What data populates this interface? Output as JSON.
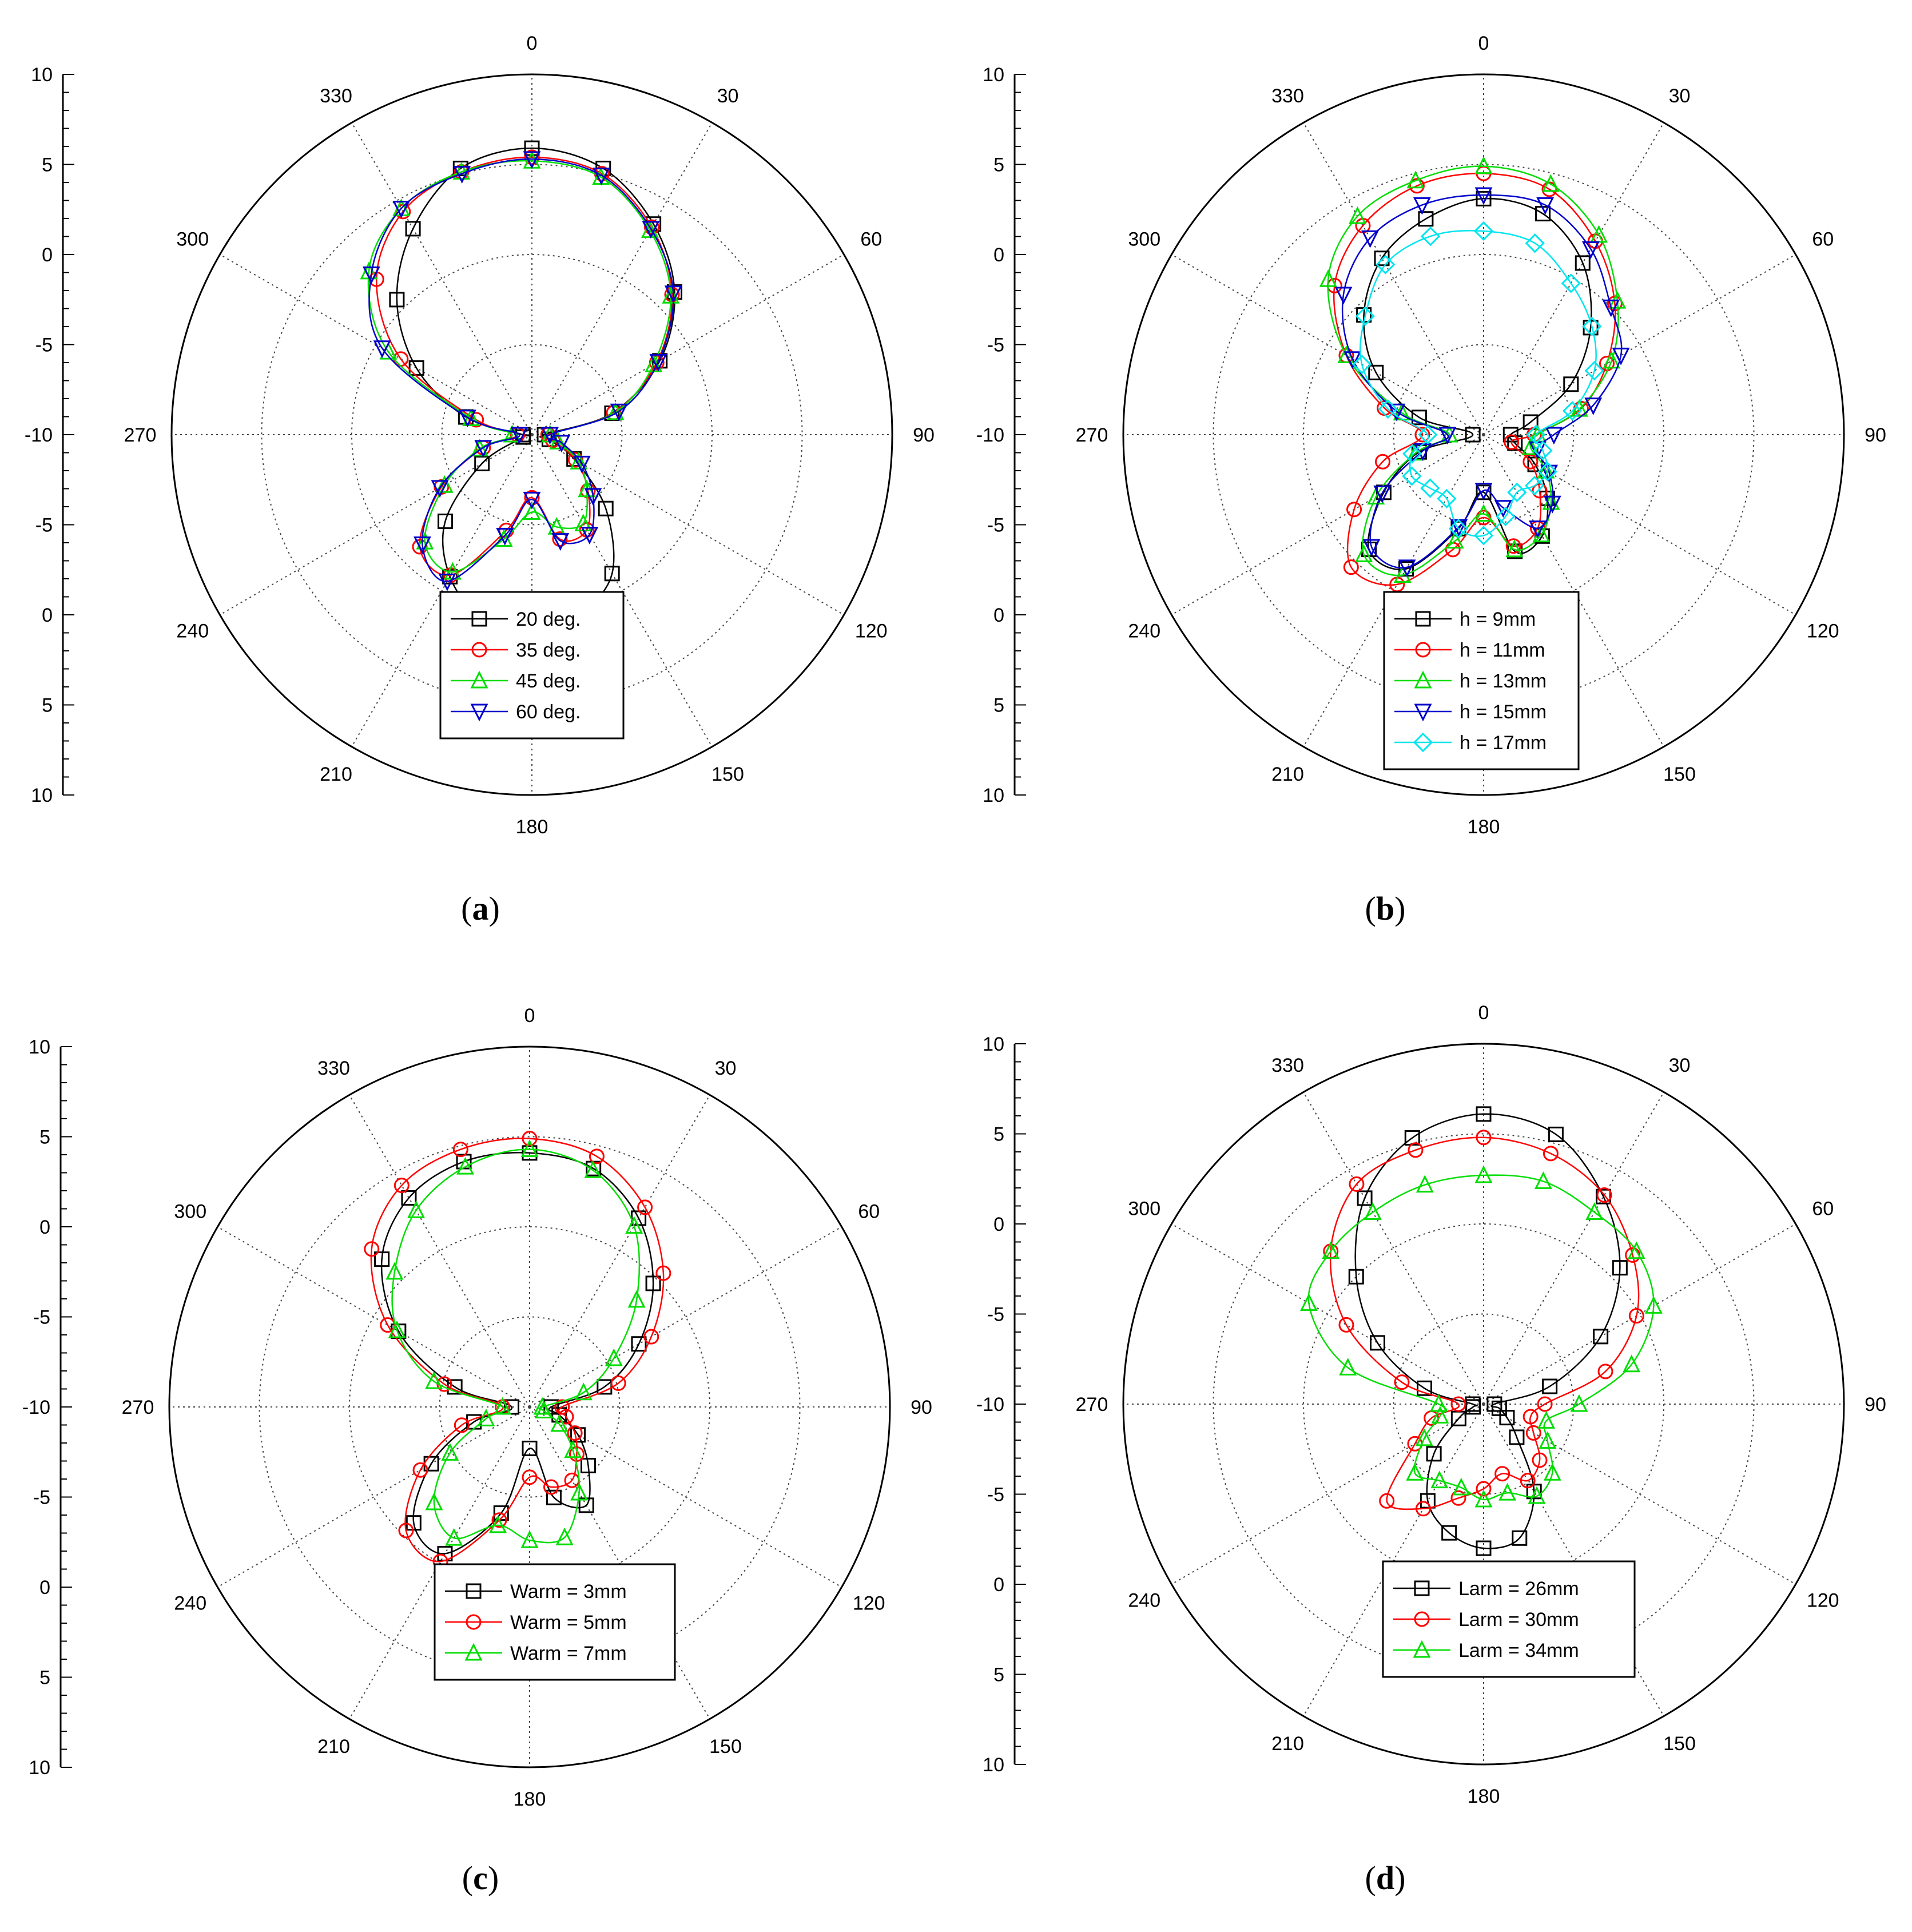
{
  "radial_scale_ticks": [
    "10",
    "5",
    "0",
    "-5",
    "-10",
    "-5",
    "0",
    "5",
    "10"
  ],
  "angle_ticks": [
    0,
    30,
    60,
    90,
    120,
    150,
    180,
    210,
    240,
    270,
    300,
    330
  ],
  "panels": [
    {
      "open": "(",
      "letter": "a",
      "close": ")"
    },
    {
      "open": "(",
      "letter": "b",
      "close": ")"
    },
    {
      "open": "(",
      "letter": "c",
      "close": ")"
    },
    {
      "open": "(",
      "letter": "d",
      "close": ")"
    }
  ],
  "chart_data": [
    {
      "type": "polar-line",
      "panel": "a",
      "radial_range": [
        -10,
        10
      ],
      "radial_ticks": [
        -10,
        -5,
        0,
        5,
        10
      ],
      "angle_ticks_deg": [
        0,
        30,
        60,
        90,
        120,
        150,
        180,
        210,
        240,
        270,
        300,
        330
      ],
      "legend_position": "bottom-center",
      "grid": true,
      "series": [
        {
          "name": "20 deg.",
          "color": "#000000",
          "marker": "square",
          "theta": [
            0,
            15,
            30,
            45,
            60,
            75,
            90,
            105,
            120,
            135,
            150,
            165,
            180,
            195,
            210,
            225,
            240,
            255,
            270,
            285,
            300,
            315,
            330,
            345
          ],
          "r": [
            5.9,
            5.3,
            3.5,
            1.2,
            -1.8,
            -5.4,
            -9.3,
            -9.0,
            -7.3,
            -4.2,
            -1.1,
            0.3,
            0.9,
            0.6,
            -0.9,
            -3.2,
            -6.8,
            -9.5,
            -9.5,
            -6.2,
            -2.6,
            0.6,
            3.2,
            5.3
          ]
        },
        {
          "name": "35 deg.",
          "color": "#ff0000",
          "marker": "circle",
          "theta": [
            0,
            15,
            30,
            45,
            60,
            75,
            90,
            105,
            120,
            135,
            150,
            165,
            180,
            195,
            210,
            225,
            240,
            255,
            270,
            285,
            300,
            315,
            330,
            345
          ],
          "r": [
            5.4,
            5.0,
            3.3,
            1.0,
            -2.0,
            -5.3,
            -9.1,
            -8.8,
            -7.2,
            -5.6,
            -3.9,
            -4.0,
            -6.5,
            -4.5,
            -1.0,
            -1.2,
            -4.2,
            -7.2,
            -9.2,
            -6.8,
            -1.6,
            2.2,
            4.3,
            5.1
          ]
        },
        {
          "name": "45 deg.",
          "color": "#00dd00",
          "marker": "triangle-up",
          "theta": [
            0,
            15,
            30,
            45,
            60,
            75,
            90,
            105,
            120,
            135,
            150,
            165,
            180,
            195,
            210,
            225,
            240,
            255,
            270,
            285,
            300,
            315,
            330,
            345
          ],
          "r": [
            5.2,
            4.8,
            3.1,
            0.9,
            -2.2,
            -5.2,
            -9.0,
            -8.5,
            -7.0,
            -5.7,
            -4.3,
            -4.7,
            -5.7,
            -4.0,
            -1.2,
            -1.6,
            -4.4,
            -7.0,
            -8.9,
            -6.5,
            -0.8,
            2.8,
            4.5,
            5.1
          ]
        },
        {
          "name": "60 deg.",
          "color": "#0000cc",
          "marker": "triangle-down",
          "theta": [
            0,
            15,
            30,
            45,
            60,
            75,
            90,
            105,
            120,
            135,
            150,
            165,
            180,
            195,
            210,
            225,
            240,
            255,
            270,
            285,
            300,
            315,
            330,
            345
          ],
          "r": [
            5.3,
            4.9,
            3.2,
            1.1,
            -1.9,
            -5.0,
            -9.0,
            -8.3,
            -6.8,
            -5.2,
            -3.6,
            -3.9,
            -6.4,
            -4.2,
            -0.6,
            -1.4,
            -4.1,
            -7.2,
            -9.3,
            -6.3,
            -0.4,
            2.6,
            4.5,
            5.0
          ]
        }
      ]
    },
    {
      "type": "polar-line",
      "panel": "b",
      "radial_range": [
        -10,
        10
      ],
      "radial_ticks": [
        -10,
        -5,
        0,
        5,
        10
      ],
      "angle_ticks_deg": [
        0,
        30,
        60,
        90,
        120,
        150,
        180,
        210,
        240,
        270,
        300,
        330
      ],
      "legend_position": "bottom-center",
      "grid": true,
      "series": [
        {
          "name": "h = 9mm",
          "color": "#000000",
          "marker": "square",
          "theta": [
            0,
            15,
            30,
            45,
            60,
            75,
            90,
            105,
            120,
            135,
            150,
            165,
            180,
            195,
            210,
            225,
            240,
            255,
            270,
            285,
            300,
            315,
            330,
            345
          ],
          "r": [
            3.1,
            2.7,
            1.0,
            -1.6,
            -4.4,
            -7.3,
            -8.5,
            -8.2,
            -6.7,
            -5.0,
            -3.5,
            -3.3,
            -6.8,
            -4.6,
            -1.4,
            -1.0,
            -3.6,
            -6.3,
            -9.4,
            -6.3,
            -3.1,
            -0.6,
            1.3,
            2.4
          ]
        },
        {
          "name": "h = 11mm",
          "color": "#ff0000",
          "marker": "circle",
          "theta": [
            0,
            15,
            30,
            45,
            60,
            75,
            90,
            105,
            120,
            135,
            150,
            165,
            180,
            195,
            210,
            225,
            240,
            255,
            270,
            285,
            300,
            315,
            330,
            345
          ],
          "r": [
            4.5,
            4.1,
            2.4,
            0.3,
            -2.1,
            -4.4,
            -7.2,
            -8.4,
            -7.0,
            -5.6,
            -4.0,
            -3.6,
            -5.4,
            -3.4,
            -0.4,
            0.4,
            -1.7,
            -4.2,
            -6.6,
            -4.3,
            -1.2,
            1.7,
            3.4,
            4.3
          ]
        },
        {
          "name": "h = 13mm",
          "color": "#00dd00",
          "marker": "triangle-up",
          "theta": [
            0,
            15,
            30,
            45,
            60,
            75,
            90,
            105,
            120,
            135,
            150,
            165,
            180,
            195,
            210,
            225,
            240,
            255,
            270,
            285,
            300,
            315,
            330,
            345
          ],
          "r": [
            4.9,
            4.4,
            2.8,
            0.5,
            -1.8,
            -4.5,
            -7.0,
            -7.3,
            -6.0,
            -4.7,
            -3.6,
            -3.4,
            -5.6,
            -3.9,
            -1.0,
            -0.6,
            -3.1,
            -6.1,
            -8.1,
            -5.3,
            -1.2,
            2.2,
            4.0,
            4.6
          ]
        },
        {
          "name": "h = 15mm",
          "color": "#0000cc",
          "marker": "triangle-down",
          "theta": [
            0,
            15,
            30,
            45,
            60,
            75,
            90,
            105,
            120,
            135,
            150,
            165,
            180,
            195,
            210,
            225,
            240,
            255,
            270,
            285,
            300,
            315,
            330,
            345
          ],
          "r": [
            3.3,
            3.2,
            1.9,
            0.0,
            -1.2,
            -3.7,
            -6.1,
            -6.9,
            -5.8,
            -4.6,
            -4.0,
            -5.8,
            -6.9,
            -4.7,
            -1.5,
            -1.2,
            -3.5,
            -6.5,
            -8.0,
            -5.0,
            -1.6,
            1.0,
            2.6,
            3.2
          ]
        },
        {
          "name": "h = 17mm",
          "color": "#00e5ee",
          "marker": "diamond",
          "theta": [
            0,
            15,
            30,
            45,
            60,
            75,
            90,
            105,
            120,
            135,
            150,
            165,
            180,
            195,
            210,
            225,
            240,
            255,
            270,
            285,
            300,
            315,
            330,
            345
          ],
          "r": [
            1.3,
            1.0,
            -0.3,
            -1.5,
            -2.9,
            -4.9,
            -7.1,
            -6.6,
            -5.9,
            -6.0,
            -6.3,
            -5.3,
            -4.4,
            -4.6,
            -5.9,
            -5.8,
            -5.4,
            -5.9,
            -6.9,
            -4.5,
            -2.2,
            -0.7,
            0.9,
            1.4
          ]
        }
      ]
    },
    {
      "type": "polar-line",
      "panel": "c",
      "radial_range": [
        -10,
        10
      ],
      "radial_ticks": [
        -10,
        -5,
        0,
        5,
        10
      ],
      "angle_ticks_deg": [
        0,
        30,
        60,
        90,
        120,
        150,
        180,
        210,
        240,
        270,
        300,
        330
      ],
      "legend_position": "bottom-center",
      "grid": true,
      "series": [
        {
          "name": "Warm = 3mm",
          "color": "#000000",
          "marker": "square",
          "theta": [
            0,
            15,
            30,
            45,
            60,
            75,
            90,
            105,
            120,
            135,
            150,
            165,
            180,
            195,
            210,
            225,
            240,
            255,
            270,
            285,
            300,
            315,
            330,
            345
          ],
          "r": [
            4.1,
            3.7,
            2.1,
            -0.3,
            -3.0,
            -5.7,
            -8.8,
            -8.3,
            -6.9,
            -5.4,
            -3.7,
            -4.8,
            -7.7,
            -3.9,
            -0.6,
            -0.9,
            -3.7,
            -6.8,
            -9.0,
            -5.7,
            -1.6,
            1.6,
            3.4,
            4.1
          ]
        },
        {
          "name": "Warm = 5mm",
          "color": "#ff0000",
          "marker": "circle",
          "theta": [
            0,
            15,
            30,
            45,
            60,
            75,
            90,
            105,
            120,
            135,
            150,
            165,
            180,
            195,
            210,
            225,
            240,
            255,
            270,
            285,
            300,
            315,
            330,
            345
          ],
          "r": [
            4.9,
            4.4,
            2.8,
            0.5,
            -2.2,
            -4.9,
            -8.2,
            -7.9,
            -7.1,
            -6.3,
            -5.3,
            -5.4,
            -6.1,
            -3.5,
            -0.1,
            -0.3,
            -3.0,
            -6.1,
            -8.5,
            -5.1,
            -0.9,
            2.4,
            4.2,
            4.8
          ]
        },
        {
          "name": "Warm = 7mm",
          "color": "#00dd00",
          "marker": "triangle-up",
          "theta": [
            0,
            15,
            30,
            45,
            60,
            75,
            90,
            105,
            120,
            135,
            150,
            165,
            180,
            195,
            210,
            225,
            240,
            255,
            270,
            285,
            300,
            315,
            330,
            345
          ],
          "r": [
            4.3,
            3.6,
            1.6,
            -1.6,
            -4.6,
            -6.9,
            -9.3,
            -9.2,
            -8.1,
            -6.6,
            -4.5,
            -2.5,
            -2.6,
            -3.2,
            -1.6,
            -2.5,
            -4.9,
            -7.5,
            -8.5,
            -4.5,
            -1.5,
            0.6,
            2.6,
            3.8
          ]
        }
      ]
    },
    {
      "type": "polar-line",
      "panel": "d",
      "radial_range": [
        -10,
        10
      ],
      "radial_ticks": [
        -10,
        -5,
        0,
        5,
        10
      ],
      "angle_ticks_deg": [
        0,
        30,
        60,
        90,
        120,
        150,
        180,
        210,
        240,
        270,
        300,
        330
      ],
      "legend_position": "bottom-center",
      "grid": true,
      "series": [
        {
          "name": "Larm = 26mm",
          "color": "#000000",
          "marker": "square",
          "theta": [
            0,
            15,
            30,
            45,
            60,
            75,
            90,
            105,
            120,
            135,
            150,
            165,
            180,
            195,
            210,
            225,
            240,
            255,
            270,
            285,
            300,
            315,
            330,
            345
          ],
          "r": [
            6.1,
            5.5,
            3.3,
            0.7,
            -2.5,
            -6.2,
            -9.4,
            -9.1,
            -8.5,
            -7.4,
            -4.4,
            -2.3,
            -2.0,
            -2.6,
            -3.8,
            -6.1,
            -8.4,
            -9.4,
            -9.4,
            -6.6,
            -3.2,
            0.0,
            3.2,
            5.3
          ]
        },
        {
          "name": "Larm = 30mm",
          "color": "#ff0000",
          "marker": "circle",
          "theta": [
            0,
            15,
            30,
            45,
            60,
            75,
            90,
            105,
            120,
            135,
            150,
            165,
            180,
            195,
            210,
            225,
            240,
            255,
            270,
            285,
            300,
            315,
            330,
            345
          ],
          "r": [
            4.8,
            4.4,
            3.4,
            1.7,
            -0.2,
            -3.0,
            -6.6,
            -7.3,
            -6.8,
            -5.6,
            -5.1,
            -6.0,
            -5.3,
            -4.6,
            -3.3,
            -2.4,
            -5.6,
            -7.0,
            -8.6,
            -5.3,
            -1.2,
            2.0,
            4.1,
            4.6
          ]
        },
        {
          "name": "Larm = 34mm",
          "color": "#00dd00",
          "marker": "triangle-up",
          "theta": [
            0,
            15,
            30,
            45,
            60,
            75,
            90,
            105,
            120,
            135,
            150,
            165,
            180,
            195,
            210,
            225,
            240,
            255,
            270,
            285,
            300,
            315,
            330,
            345
          ],
          "r": [
            2.7,
            2.8,
            2.3,
            2.0,
            0.9,
            -1.5,
            -4.7,
            -6.4,
            -5.9,
            -4.6,
            -4.1,
            -4.9,
            -4.7,
            -5.2,
            -5.1,
            -4.6,
            -6.2,
            -7.5,
            -7.5,
            -2.2,
            1.2,
            2.0,
            2.3,
            2.6
          ]
        }
      ]
    }
  ]
}
